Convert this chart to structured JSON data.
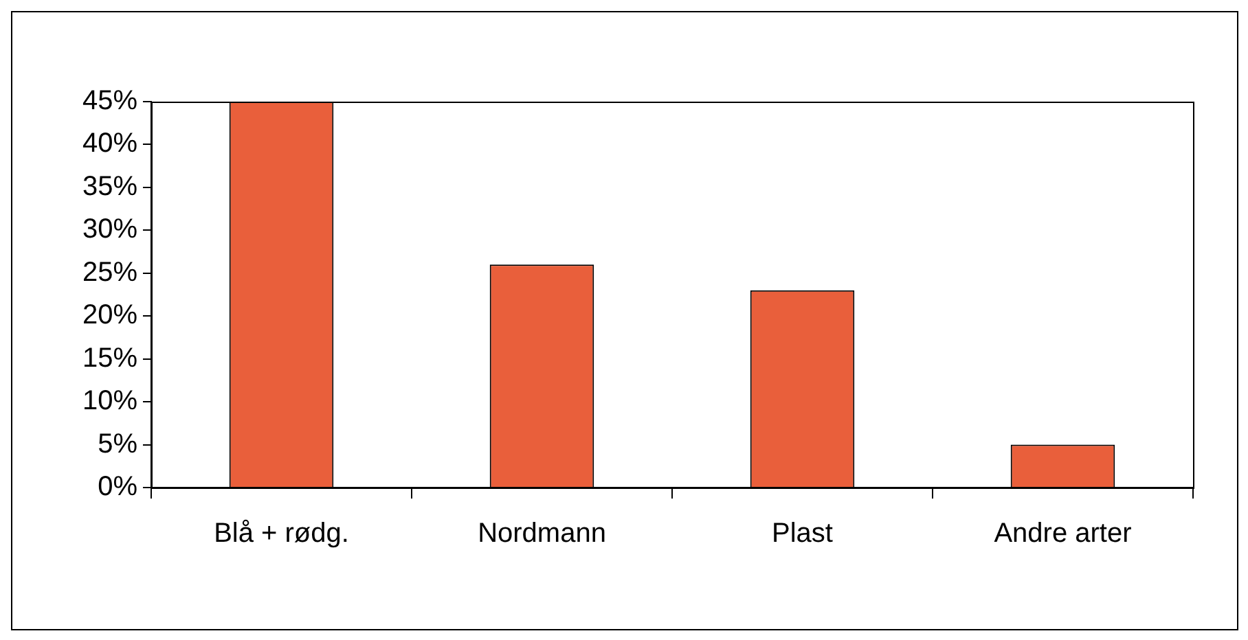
{
  "chart_data": {
    "type": "bar",
    "categories": [
      "Blå + rødg.",
      "Nordmann",
      "Plast",
      "Andre arter"
    ],
    "values": [
      45,
      26,
      23,
      5
    ],
    "color": "#e95f3b",
    "ylim": [
      0,
      45
    ],
    "yticks": [
      {
        "value": 0,
        "label": "0%"
      },
      {
        "value": 5,
        "label": "5%"
      },
      {
        "value": 10,
        "label": "10%"
      },
      {
        "value": 15,
        "label": "15%"
      },
      {
        "value": 20,
        "label": "20%"
      },
      {
        "value": 25,
        "label": "25%"
      },
      {
        "value": 30,
        "label": "30%"
      },
      {
        "value": 35,
        "label": "35%"
      },
      {
        "value": 40,
        "label": "40%"
      },
      {
        "value": 45,
        "label": "45%"
      }
    ],
    "grid": false
  }
}
